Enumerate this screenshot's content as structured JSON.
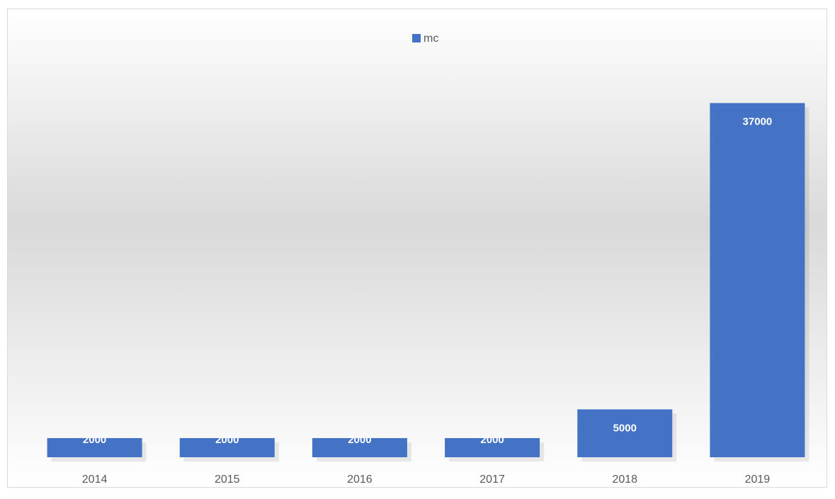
{
  "chart_data": {
    "type": "bar",
    "legend": "top",
    "categories": [
      "2014",
      "2015",
      "2016",
      "2017",
      "2018",
      "2019"
    ],
    "series": [
      {
        "name": "mc",
        "color": "#4472c4",
        "values": [
          2000,
          2000,
          2000,
          2000,
          5000,
          37000
        ]
      }
    ],
    "ylim": [
      0,
      40000
    ]
  }
}
